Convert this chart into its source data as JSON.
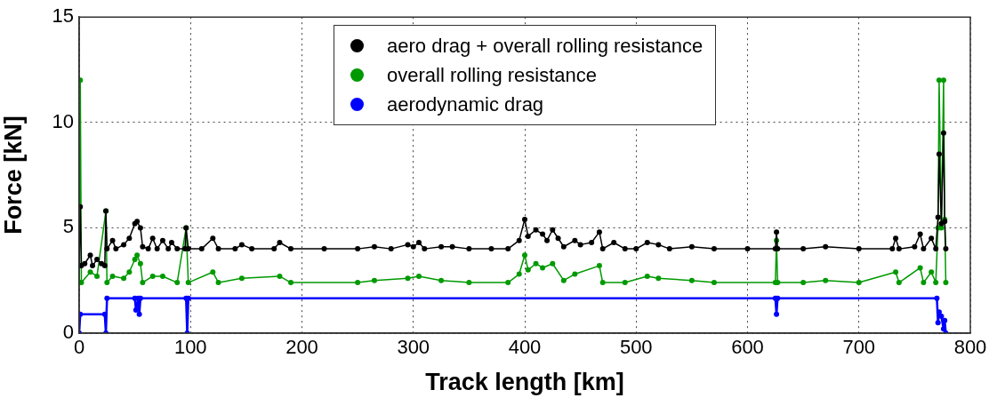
{
  "chart_data": {
    "type": "line",
    "xlabel": "Track length [km]",
    "ylabel": "Force [kN]",
    "xlim": [
      0,
      800
    ],
    "xticks": [
      0,
      100,
      200,
      300,
      400,
      500,
      600,
      700,
      800
    ],
    "ylim": [
      0,
      15
    ],
    "yticks": [
      0,
      5,
      10,
      15
    ],
    "grid": true,
    "legend": "top",
    "marker": "circle",
    "series": [
      {
        "name": "aero drag + overall rolling resistance",
        "color": "#000000",
        "x": [
          0,
          1,
          2,
          5,
          10,
          12,
          16,
          20,
          23,
          24,
          25,
          30,
          33,
          40,
          45,
          50,
          52,
          55,
          57,
          62,
          66,
          70,
          75,
          80,
          83,
          88,
          95,
          96,
          98,
          110,
          120,
          125,
          140,
          146,
          155,
          175,
          180,
          190,
          220,
          250,
          265,
          280,
          295,
          300,
          305,
          310,
          325,
          335,
          350,
          370,
          385,
          395,
          400,
          403,
          410,
          416,
          420,
          425,
          430,
          435,
          445,
          450,
          460,
          467,
          470,
          480,
          490,
          500,
          510,
          520,
          530,
          550,
          570,
          600,
          625,
          626,
          627,
          650,
          670,
          700,
          730,
          733,
          736,
          750,
          755,
          758,
          765,
          769,
          771,
          772,
          774,
          776,
          777,
          778
        ],
        "values": [
          3.2,
          6.0,
          3.2,
          3.3,
          3.7,
          3.2,
          3.5,
          3.3,
          3.2,
          5.8,
          4.0,
          4.4,
          4.0,
          4.2,
          4.5,
          5.2,
          5.3,
          5.0,
          4.1,
          4.0,
          4.5,
          4.0,
          4.4,
          4.0,
          4.3,
          4.0,
          4.0,
          5.0,
          4.0,
          4.0,
          4.5,
          4.0,
          4.0,
          4.2,
          4.0,
          4.0,
          4.3,
          4.0,
          4.0,
          4.0,
          4.1,
          4.0,
          4.2,
          4.1,
          4.3,
          4.0,
          4.1,
          4.1,
          4.0,
          4.0,
          4.0,
          4.4,
          5.4,
          4.6,
          4.9,
          4.7,
          4.4,
          4.9,
          4.5,
          4.1,
          4.4,
          4.2,
          4.3,
          4.8,
          4.0,
          4.3,
          4.0,
          4.0,
          4.3,
          4.2,
          4.0,
          4.1,
          4.0,
          4.0,
          4.0,
          4.8,
          4.0,
          4.0,
          4.1,
          4.0,
          4.0,
          4.5,
          4.0,
          4.1,
          4.7,
          4.0,
          4.5,
          4.0,
          5.5,
          8.5,
          5.2,
          9.5,
          5.3,
          4.0
        ]
      },
      {
        "name": "overall rolling resistance",
        "color": "#009900",
        "x": [
          0,
          1,
          2,
          10,
          16,
          24,
          25,
          30,
          40,
          45,
          50,
          52,
          55,
          57,
          66,
          75,
          88,
          96,
          98,
          120,
          125,
          146,
          180,
          190,
          250,
          265,
          295,
          305,
          325,
          350,
          385,
          395,
          400,
          403,
          410,
          416,
          425,
          435,
          445,
          467,
          470,
          490,
          510,
          520,
          550,
          570,
          625,
          626,
          627,
          650,
          670,
          700,
          733,
          736,
          755,
          758,
          765,
          769,
          771,
          772,
          774,
          776,
          777,
          778
        ],
        "values": [
          2.4,
          12,
          2.4,
          2.9,
          2.7,
          5.8,
          2.4,
          2.7,
          2.6,
          2.9,
          3.5,
          3.7,
          3.3,
          2.4,
          2.7,
          2.7,
          2.4,
          5.0,
          2.4,
          2.9,
          2.4,
          2.6,
          2.7,
          2.4,
          2.4,
          2.5,
          2.6,
          2.7,
          2.5,
          2.4,
          2.4,
          2.8,
          3.7,
          3.0,
          3.3,
          3.1,
          3.3,
          2.5,
          2.8,
          3.2,
          2.4,
          2.4,
          2.7,
          2.6,
          2.5,
          2.4,
          2.4,
          4.4,
          2.4,
          2.4,
          2.5,
          2.4,
          2.9,
          2.4,
          3.1,
          2.4,
          2.9,
          2.4,
          5.0,
          12,
          5.0,
          12,
          5.4,
          2.4
        ]
      },
      {
        "name": "aerodynamic drag",
        "color": "#0000ff",
        "x": [
          0,
          1,
          23,
          24,
          25,
          50,
          51,
          53,
          54,
          55,
          96,
          97,
          98,
          625,
          626,
          627,
          770,
          771,
          772,
          774,
          776,
          777,
          778
        ],
        "values": [
          0,
          0.9,
          0.9,
          0,
          1.65,
          1.65,
          1.1,
          1.65,
          0.9,
          1.65,
          1.65,
          0,
          1.65,
          1.65,
          0.9,
          1.65,
          1.65,
          0.5,
          1.0,
          0.8,
          0.2,
          0.6,
          0
        ]
      }
    ]
  }
}
